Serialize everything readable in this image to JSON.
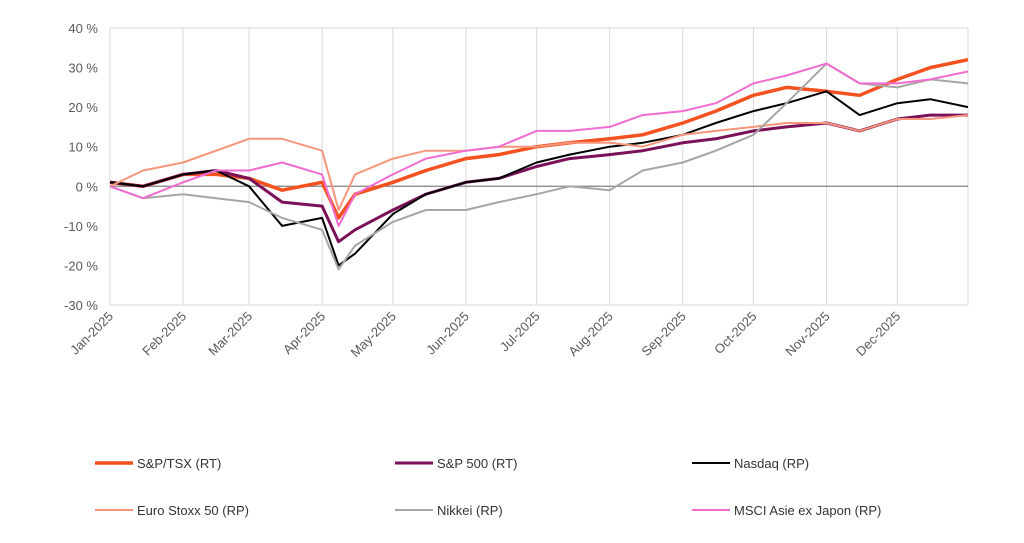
{
  "chart_data": {
    "type": "line",
    "title": "",
    "xlabel": "",
    "ylabel": "",
    "ylim": [
      -30,
      40
    ],
    "y_ticks": [
      "-30 %",
      "-20 %",
      "-10 %",
      "0 %",
      "10 %",
      "20 %",
      "30 %",
      "40 %"
    ],
    "y_tick_values": [
      -30,
      -20,
      -10,
      0,
      10,
      20,
      30,
      40
    ],
    "x_ticks": [
      "Jan-2025",
      "Feb-2025",
      "Mar-2025",
      "Apr-2025",
      "May-2025",
      "Jun-2025",
      "Jul-2025",
      "Aug-2025",
      "Sep-2025",
      "Oct-2025",
      "Nov-2025",
      "Dec-2025"
    ],
    "x_tick_dates": [
      "2025-01-01",
      "2025-02-01",
      "2025-03-01",
      "2025-04-01",
      "2025-05-01",
      "2025-06-01",
      "2025-07-01",
      "2025-08-01",
      "2025-09-01",
      "2025-10-01",
      "2025-11-01",
      "2025-12-01"
    ],
    "xlim": [
      "2025-01-01",
      "2025-12-31"
    ],
    "grid": "vertical",
    "legend_position": "bottom",
    "x": [
      "2025-01-01",
      "2025-01-15",
      "2025-02-01",
      "2025-02-15",
      "2025-03-01",
      "2025-03-15",
      "2025-04-01",
      "2025-04-08",
      "2025-04-15",
      "2025-05-01",
      "2025-05-15",
      "2025-06-01",
      "2025-06-15",
      "2025-07-01",
      "2025-07-15",
      "2025-08-01",
      "2025-08-15",
      "2025-09-01",
      "2025-09-15",
      "2025-10-01",
      "2025-10-15",
      "2025-11-01",
      "2025-11-15",
      "2025-12-01",
      "2025-12-15",
      "2025-12-31"
    ],
    "series": [
      {
        "name": "S&P/TSX (RT)",
        "color": "#f4511e",
        "width": 3.5,
        "values": [
          1,
          0,
          3,
          3,
          2,
          -1,
          1,
          -8,
          -2,
          1,
          4,
          7,
          8,
          10,
          11,
          12,
          13,
          16,
          19,
          23,
          25,
          24,
          23,
          27,
          30,
          32
        ]
      },
      {
        "name": "S&P 500 (RT)",
        "color": "#7b1158",
        "width": 3,
        "values": [
          1,
          0,
          3,
          4,
          2,
          -4,
          -5,
          -14,
          -11,
          -6,
          -2,
          1,
          2,
          5,
          7,
          8,
          9,
          11,
          12,
          14,
          15,
          16,
          14,
          17,
          18,
          18
        ]
      },
      {
        "name": "Nasdaq (RP)",
        "color": "#000000",
        "width": 2,
        "values": [
          1,
          0,
          3,
          4,
          0,
          -10,
          -8,
          -20,
          -17,
          -7,
          -2,
          1,
          2,
          6,
          8,
          10,
          11,
          13,
          16,
          19,
          21,
          24,
          18,
          21,
          22,
          20
        ]
      },
      {
        "name": "Euro Stoxx 50 (RP)",
        "color": "#f7967a",
        "width": 2,
        "values": [
          0,
          4,
          6,
          9,
          12,
          12,
          9,
          -6,
          3,
          7,
          9,
          9,
          10,
          10,
          11,
          11,
          10,
          13,
          14,
          15,
          16,
          16,
          14,
          17,
          17,
          18
        ]
      },
      {
        "name": "Nikkei (RP)",
        "color": "#a6a6a6",
        "width": 2,
        "values": [
          0,
          -3,
          -2,
          -3,
          -4,
          -8,
          -11,
          -21,
          -15,
          -9,
          -6,
          -6,
          -4,
          -2,
          0,
          -1,
          4,
          6,
          9,
          13,
          21,
          31,
          26,
          25,
          27,
          26
        ]
      },
      {
        "name": "MSCI Asie ex Japon (RP)",
        "color": "#f06cd0",
        "width": 2,
        "values": [
          0,
          -3,
          1,
          4,
          4,
          6,
          3,
          -10,
          -2,
          3,
          7,
          9,
          10,
          14,
          14,
          15,
          18,
          19,
          21,
          26,
          28,
          31,
          26,
          26,
          27,
          29
        ]
      }
    ]
  }
}
